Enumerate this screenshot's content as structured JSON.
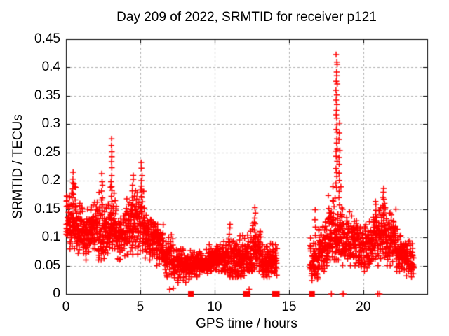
{
  "chart_data": {
    "type": "scatter",
    "title": "Day 209 of 2022, SRMTID for receiver p121",
    "xlabel": "GPS time / hours",
    "ylabel": "SRMTID / TECUs",
    "xlim": [
      0,
      24.3
    ],
    "ylim": [
      0,
      0.45
    ],
    "x_ticks": [
      {
        "value": 0,
        "label": "0"
      },
      {
        "value": 5,
        "label": "5"
      },
      {
        "value": 10,
        "label": "10"
      },
      {
        "value": 15,
        "label": "15"
      },
      {
        "value": 20,
        "label": "20"
      }
    ],
    "y_ticks": [
      {
        "value": 0,
        "label": "0"
      },
      {
        "value": 0.05,
        "label": "0.05"
      },
      {
        "value": 0.1,
        "label": "0.1"
      },
      {
        "value": 0.15,
        "label": "0.15"
      },
      {
        "value": 0.2,
        "label": "0.2"
      },
      {
        "value": 0.25,
        "label": "0.25"
      },
      {
        "value": 0.3,
        "label": "0.3"
      },
      {
        "value": 0.35,
        "label": "0.35"
      },
      {
        "value": 0.4,
        "label": "0.4"
      },
      {
        "value": 0.45,
        "label": "0.45"
      }
    ],
    "grid": true,
    "legend": "none",
    "marker": "plus",
    "marker_color": "#ff0000",
    "grid_color": "#b0b0b0",
    "axis_color": "#000000",
    "background": "#ffffff",
    "max_point": {
      "x": 18.2,
      "y": 0.42
    },
    "data_gap_hours": [
      14.2,
      16.4
    ],
    "bands": [
      {
        "x_start": 0.0,
        "x_end": 0.35,
        "y_min": 0.07,
        "y_max": 0.19,
        "y_typ": 0.13,
        "n": 44
      },
      {
        "x_start": 0.35,
        "x_end": 0.7,
        "y_min": 0.08,
        "y_max": 0.21,
        "y_typ": 0.13,
        "n": 44
      },
      {
        "x_start": 0.7,
        "x_end": 1.1,
        "y_min": 0.06,
        "y_max": 0.16,
        "y_typ": 0.11,
        "n": 50
      },
      {
        "x_start": 1.1,
        "x_end": 1.6,
        "y_min": 0.06,
        "y_max": 0.15,
        "y_typ": 0.1,
        "n": 62
      },
      {
        "x_start": 1.6,
        "x_end": 2.1,
        "y_min": 0.07,
        "y_max": 0.17,
        "y_typ": 0.11,
        "n": 62
      },
      {
        "x_start": 2.1,
        "x_end": 2.6,
        "y_min": 0.06,
        "y_max": 0.18,
        "y_typ": 0.11,
        "n": 62
      },
      {
        "x_start": 2.6,
        "x_end": 3.0,
        "y_min": 0.07,
        "y_max": 0.16,
        "y_typ": 0.11,
        "n": 50
      },
      {
        "x_start": 3.0,
        "x_end": 3.4,
        "y_min": 0.08,
        "y_max": 0.19,
        "y_typ": 0.12,
        "n": 50
      },
      {
        "x_start": 3.4,
        "x_end": 4.0,
        "y_min": 0.06,
        "y_max": 0.14,
        "y_typ": 0.1,
        "n": 74
      },
      {
        "x_start": 4.0,
        "x_end": 4.6,
        "y_min": 0.07,
        "y_max": 0.17,
        "y_typ": 0.11,
        "n": 74
      },
      {
        "x_start": 4.6,
        "x_end": 5.3,
        "y_min": 0.07,
        "y_max": 0.19,
        "y_typ": 0.12,
        "n": 86
      },
      {
        "x_start": 5.3,
        "x_end": 6.0,
        "y_min": 0.06,
        "y_max": 0.16,
        "y_typ": 0.1,
        "n": 86
      },
      {
        "x_start": 6.0,
        "x_end": 6.6,
        "y_min": 0.05,
        "y_max": 0.13,
        "y_typ": 0.085,
        "n": 74
      },
      {
        "x_start": 6.6,
        "x_end": 7.2,
        "y_min": 0.03,
        "y_max": 0.11,
        "y_typ": 0.065,
        "n": 74
      },
      {
        "x_start": 7.2,
        "x_end": 8.4,
        "y_min": 0.02,
        "y_max": 0.08,
        "y_typ": 0.048,
        "n": 130
      },
      {
        "x_start": 8.4,
        "x_end": 9.6,
        "y_min": 0.03,
        "y_max": 0.08,
        "y_typ": 0.052,
        "n": 140
      },
      {
        "x_start": 9.6,
        "x_end": 10.6,
        "y_min": 0.04,
        "y_max": 0.09,
        "y_typ": 0.06,
        "n": 115
      },
      {
        "x_start": 10.6,
        "x_end": 11.6,
        "y_min": 0.03,
        "y_max": 0.1,
        "y_typ": 0.06,
        "n": 115
      },
      {
        "x_start": 11.6,
        "x_end": 12.4,
        "y_min": 0.03,
        "y_max": 0.11,
        "y_typ": 0.062,
        "n": 92
      },
      {
        "x_start": 12.4,
        "x_end": 13.1,
        "y_min": 0.04,
        "y_max": 0.13,
        "y_typ": 0.07,
        "n": 84
      },
      {
        "x_start": 13.1,
        "x_end": 14.2,
        "y_min": 0.03,
        "y_max": 0.09,
        "y_typ": 0.055,
        "n": 125
      },
      {
        "x_start": 16.4,
        "x_end": 17.0,
        "y_min": 0.02,
        "y_max": 0.1,
        "y_typ": 0.055,
        "n": 66
      },
      {
        "x_start": 17.0,
        "x_end": 17.6,
        "y_min": 0.04,
        "y_max": 0.13,
        "y_typ": 0.08,
        "n": 76
      },
      {
        "x_start": 17.6,
        "x_end": 18.1,
        "y_min": 0.06,
        "y_max": 0.19,
        "y_typ": 0.11,
        "n": 62
      },
      {
        "x_start": 18.1,
        "x_end": 18.6,
        "y_min": 0.06,
        "y_max": 0.19,
        "y_typ": 0.1,
        "n": 62
      },
      {
        "x_start": 18.6,
        "x_end": 19.6,
        "y_min": 0.05,
        "y_max": 0.15,
        "y_typ": 0.09,
        "n": 115
      },
      {
        "x_start": 19.6,
        "x_end": 20.6,
        "y_min": 0.04,
        "y_max": 0.13,
        "y_typ": 0.08,
        "n": 115
      },
      {
        "x_start": 20.6,
        "x_end": 21.5,
        "y_min": 0.05,
        "y_max": 0.16,
        "y_typ": 0.1,
        "n": 104
      },
      {
        "x_start": 21.5,
        "x_end": 22.2,
        "y_min": 0.05,
        "y_max": 0.15,
        "y_typ": 0.095,
        "n": 84
      },
      {
        "x_start": 22.2,
        "x_end": 22.9,
        "y_min": 0.04,
        "y_max": 0.12,
        "y_typ": 0.07,
        "n": 84
      },
      {
        "x_start": 22.9,
        "x_end": 23.4,
        "y_min": 0.03,
        "y_max": 0.1,
        "y_typ": 0.06,
        "n": 60
      }
    ],
    "spikes": [
      {
        "x": 0.45,
        "y_base": 0.16,
        "y_top": 0.215,
        "n": 7
      },
      {
        "x": 2.42,
        "y_base": 0.15,
        "y_top": 0.21,
        "n": 7
      },
      {
        "x": 3.06,
        "y_base": 0.13,
        "y_top": 0.272,
        "n": 15
      },
      {
        "x": 4.5,
        "y_base": 0.14,
        "y_top": 0.21,
        "n": 8
      },
      {
        "x": 5.1,
        "y_base": 0.15,
        "y_top": 0.232,
        "n": 9
      },
      {
        "x": 11.0,
        "y_base": 0.09,
        "y_top": 0.123,
        "n": 5
      },
      {
        "x": 12.7,
        "y_base": 0.1,
        "y_top": 0.152,
        "n": 8
      },
      {
        "x": 16.75,
        "y_base": 0.09,
        "y_top": 0.148,
        "n": 5
      },
      {
        "x": 18.2,
        "y_base": 0.19,
        "y_top": 0.42,
        "n": 28
      },
      {
        "x": 18.4,
        "y_base": 0.14,
        "y_top": 0.3,
        "n": 12
      },
      {
        "x": 20.85,
        "y_base": 0.12,
        "y_top": 0.165,
        "n": 6
      },
      {
        "x": 21.35,
        "y_base": 0.13,
        "y_top": 0.186,
        "n": 9
      }
    ],
    "zero_markers": [
      {
        "x": 8.4,
        "style": "square"
      },
      {
        "x": 12.1,
        "style": "square"
      },
      {
        "x": 12.22,
        "style": "square"
      },
      {
        "x": 14.05,
        "style": "square"
      },
      {
        "x": 14.18,
        "style": "square"
      },
      {
        "x": 16.55,
        "style": "square"
      },
      {
        "x": 17.85,
        "style": "plus"
      },
      {
        "x": 18.58,
        "style": "plus"
      },
      {
        "x": 18.68,
        "style": "plus"
      },
      {
        "x": 20.98,
        "style": "plus"
      },
      {
        "x": 21.1,
        "style": "plus"
      }
    ],
    "near_zero_points": [
      {
        "x": 6.98,
        "y": 0.008
      },
      {
        "x": 7.22,
        "y": 0.01
      },
      {
        "x": 12.32,
        "y": 0.008
      }
    ]
  }
}
